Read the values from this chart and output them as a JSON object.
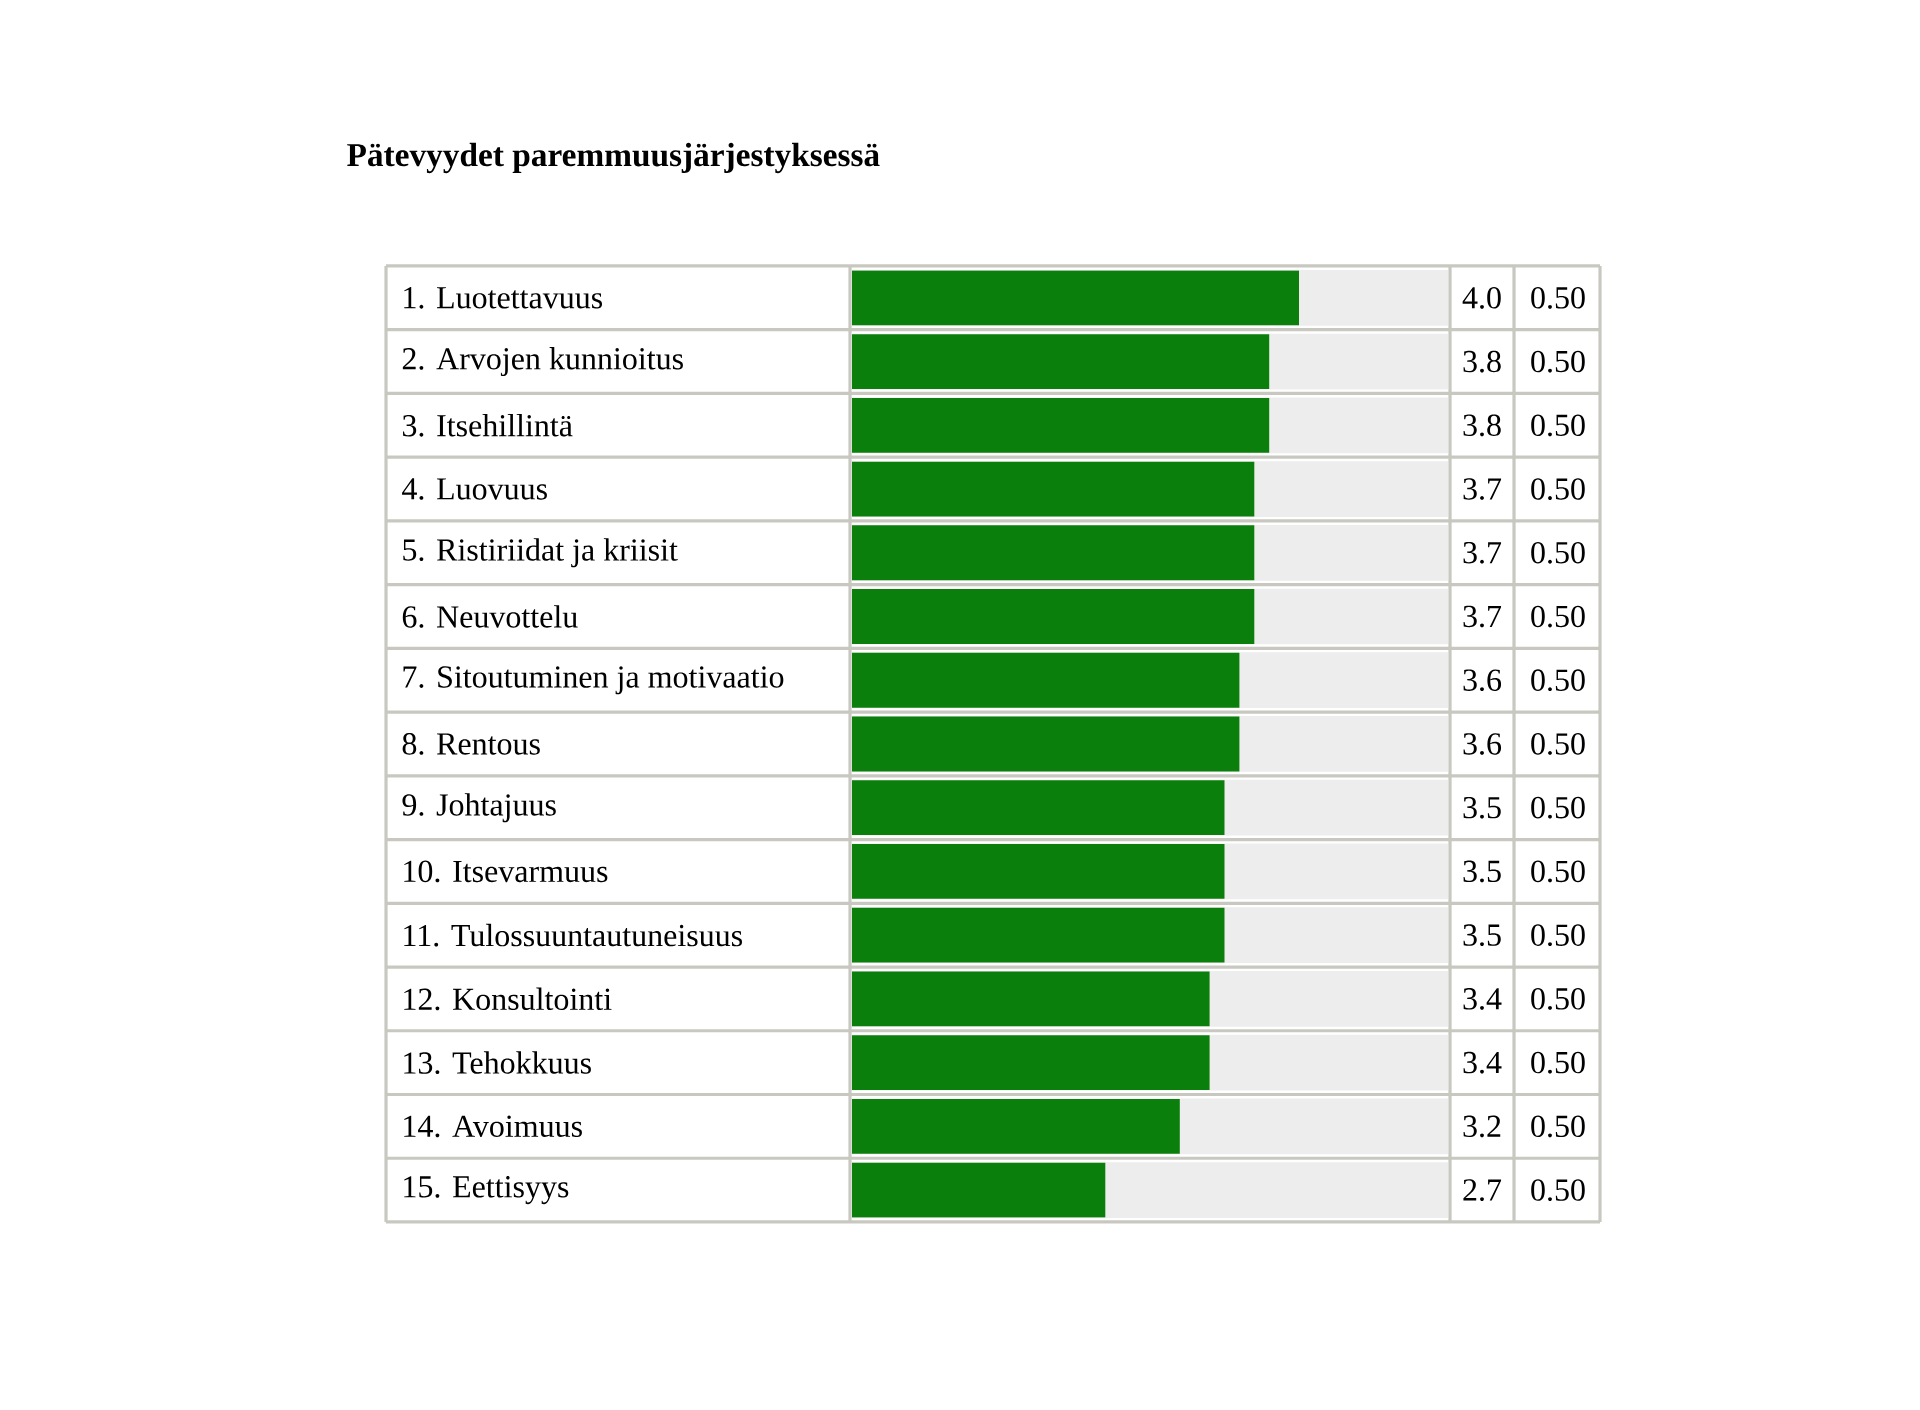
{
  "chart_data": {
    "type": "bar",
    "orientation": "horizontal",
    "title": "Pätevyydet paremmuusjärjestyksessä",
    "categories": [
      "1. Luotettavuus",
      "2. Arvojen kunnioitus",
      "3. Itsehillintä",
      "4. Luovuus",
      "5. Ristiriidat ja kriisit",
      "6. Neuvottelu",
      "7. Sitoutuminen ja motivaatio",
      "8. Rentous",
      "9. Johtajuus",
      "10. Itsevarmuus",
      "11. Tulossuuntautuneisuus",
      "12. Konsultointi",
      "13. Tehokkuus",
      "14. Avoimuus",
      "15. Eettisyys"
    ],
    "values": [
      4.0,
      3.8,
      3.8,
      3.7,
      3.7,
      3.7,
      3.6,
      3.6,
      3.5,
      3.5,
      3.5,
      3.4,
      3.4,
      3.2,
      2.7
    ],
    "value_labels": [
      "4.0",
      "3.8",
      "3.8",
      "3.7",
      "3.7",
      "3.7",
      "3.6",
      "3.6",
      "3.5",
      "3.5",
      "3.5",
      "3.4",
      "3.4",
      "3.2",
      "2.7"
    ],
    "color": "#0b7f0b",
    "xlim": [
      1,
      5
    ],
    "tick_labels": "y",
    "annotations": [
      "0.50",
      "0.50",
      "0.50",
      "0.50",
      "0.50",
      "0.50",
      "0.50",
      "0.50",
      "0.50",
      "0.50",
      "0.50",
      "0.50",
      "0.50",
      "0.50",
      "0.50"
    ]
  }
}
